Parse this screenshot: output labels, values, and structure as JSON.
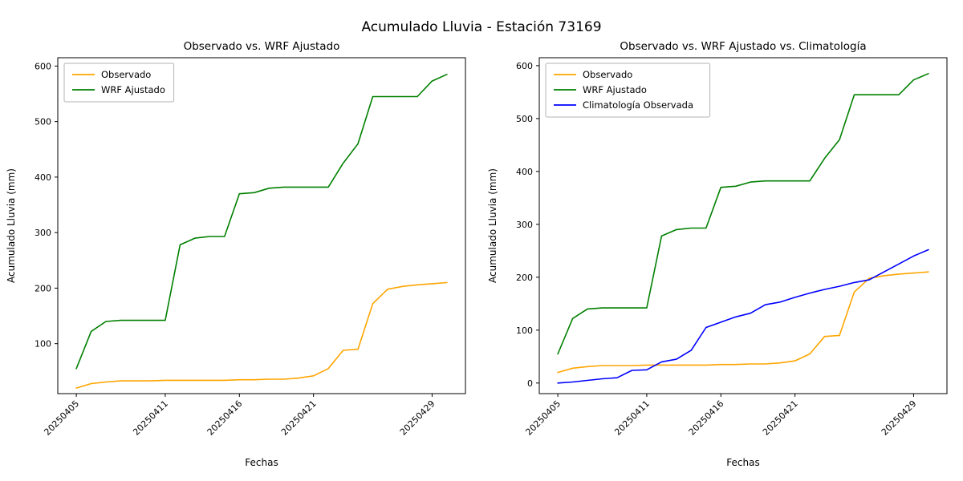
{
  "figure": {
    "suptitle": "Acumulado Lluvia - Estación 73169",
    "background": "#ffffff",
    "text_color": "#000000"
  },
  "chart_data": [
    {
      "type": "line",
      "title": "Observado vs. WRF Ajustado",
      "xlabel": "Fechas",
      "ylabel": "Acumulado Lluvia (mm)",
      "grid": false,
      "legend_position": "upper left",
      "x": [
        "20250405",
        "20250406",
        "20250407",
        "20250408",
        "20250409",
        "20250410",
        "20250411",
        "20250412",
        "20250413",
        "20250414",
        "20250415",
        "20250416",
        "20250417",
        "20250418",
        "20250419",
        "20250420",
        "20250421",
        "20250422",
        "20250423",
        "20250424",
        "20250425",
        "20250426",
        "20250427",
        "20250428",
        "20250429",
        "20250430"
      ],
      "xtick_labels": [
        "20250405",
        "20250411",
        "20250416",
        "20250421",
        "20250429"
      ],
      "xtick_indices": [
        0,
        6,
        11,
        16,
        24
      ],
      "ylim": [
        10,
        615
      ],
      "yticks": [
        100,
        200,
        300,
        400,
        500,
        600
      ],
      "series": [
        {
          "name": "Observado",
          "color": "#ffa500",
          "values": [
            20,
            28,
            31,
            33,
            33,
            33,
            34,
            34,
            34,
            34,
            34,
            35,
            35,
            36,
            36,
            38,
            42,
            55,
            88,
            90,
            172,
            198,
            203,
            206,
            208,
            210
          ]
        },
        {
          "name": "WRF Ajustado",
          "color": "#008000",
          "values": [
            55,
            122,
            140,
            142,
            142,
            142,
            142,
            278,
            290,
            293,
            293,
            370,
            372,
            380,
            382,
            382,
            382,
            382,
            425,
            460,
            545,
            545,
            545,
            545,
            573,
            585
          ]
        }
      ]
    },
    {
      "type": "line",
      "title": "Observado vs. WRF Ajustado vs. Climatología",
      "xlabel": "Fechas",
      "ylabel": "Acumulado Lluvia (mm)",
      "grid": false,
      "legend_position": "upper left",
      "x": [
        "20250405",
        "20250406",
        "20250407",
        "20250408",
        "20250409",
        "20250410",
        "20250411",
        "20250412",
        "20250413",
        "20250414",
        "20250415",
        "20250416",
        "20250417",
        "20250418",
        "20250419",
        "20250420",
        "20250421",
        "20250422",
        "20250423",
        "20250424",
        "20250425",
        "20250426",
        "20250427",
        "20250428",
        "20250429",
        "20250430"
      ],
      "xtick_labels": [
        "20250405",
        "20250411",
        "20250416",
        "20250421",
        "20250429"
      ],
      "xtick_indices": [
        0,
        6,
        11,
        16,
        24
      ],
      "ylim": [
        -20,
        615
      ],
      "yticks": [
        0,
        100,
        200,
        300,
        400,
        500,
        600
      ],
      "series": [
        {
          "name": "Observado",
          "color": "#ffa500",
          "values": [
            20,
            28,
            31,
            33,
            33,
            33,
            34,
            34,
            34,
            34,
            34,
            35,
            35,
            36,
            36,
            38,
            42,
            55,
            88,
            90,
            172,
            198,
            203,
            206,
            208,
            210
          ]
        },
        {
          "name": "WRF Ajustado",
          "color": "#008000",
          "values": [
            55,
            122,
            140,
            142,
            142,
            142,
            142,
            278,
            290,
            293,
            293,
            370,
            372,
            380,
            382,
            382,
            382,
            382,
            425,
            460,
            545,
            545,
            545,
            545,
            573,
            585
          ]
        },
        {
          "name": "Climatología Observada",
          "color": "#0000ff",
          "values": [
            0,
            2,
            5,
            8,
            10,
            24,
            25,
            40,
            45,
            62,
            105,
            115,
            125,
            132,
            148,
            153,
            162,
            170,
            177,
            183,
            190,
            195,
            210,
            225,
            240,
            252
          ]
        }
      ]
    }
  ]
}
